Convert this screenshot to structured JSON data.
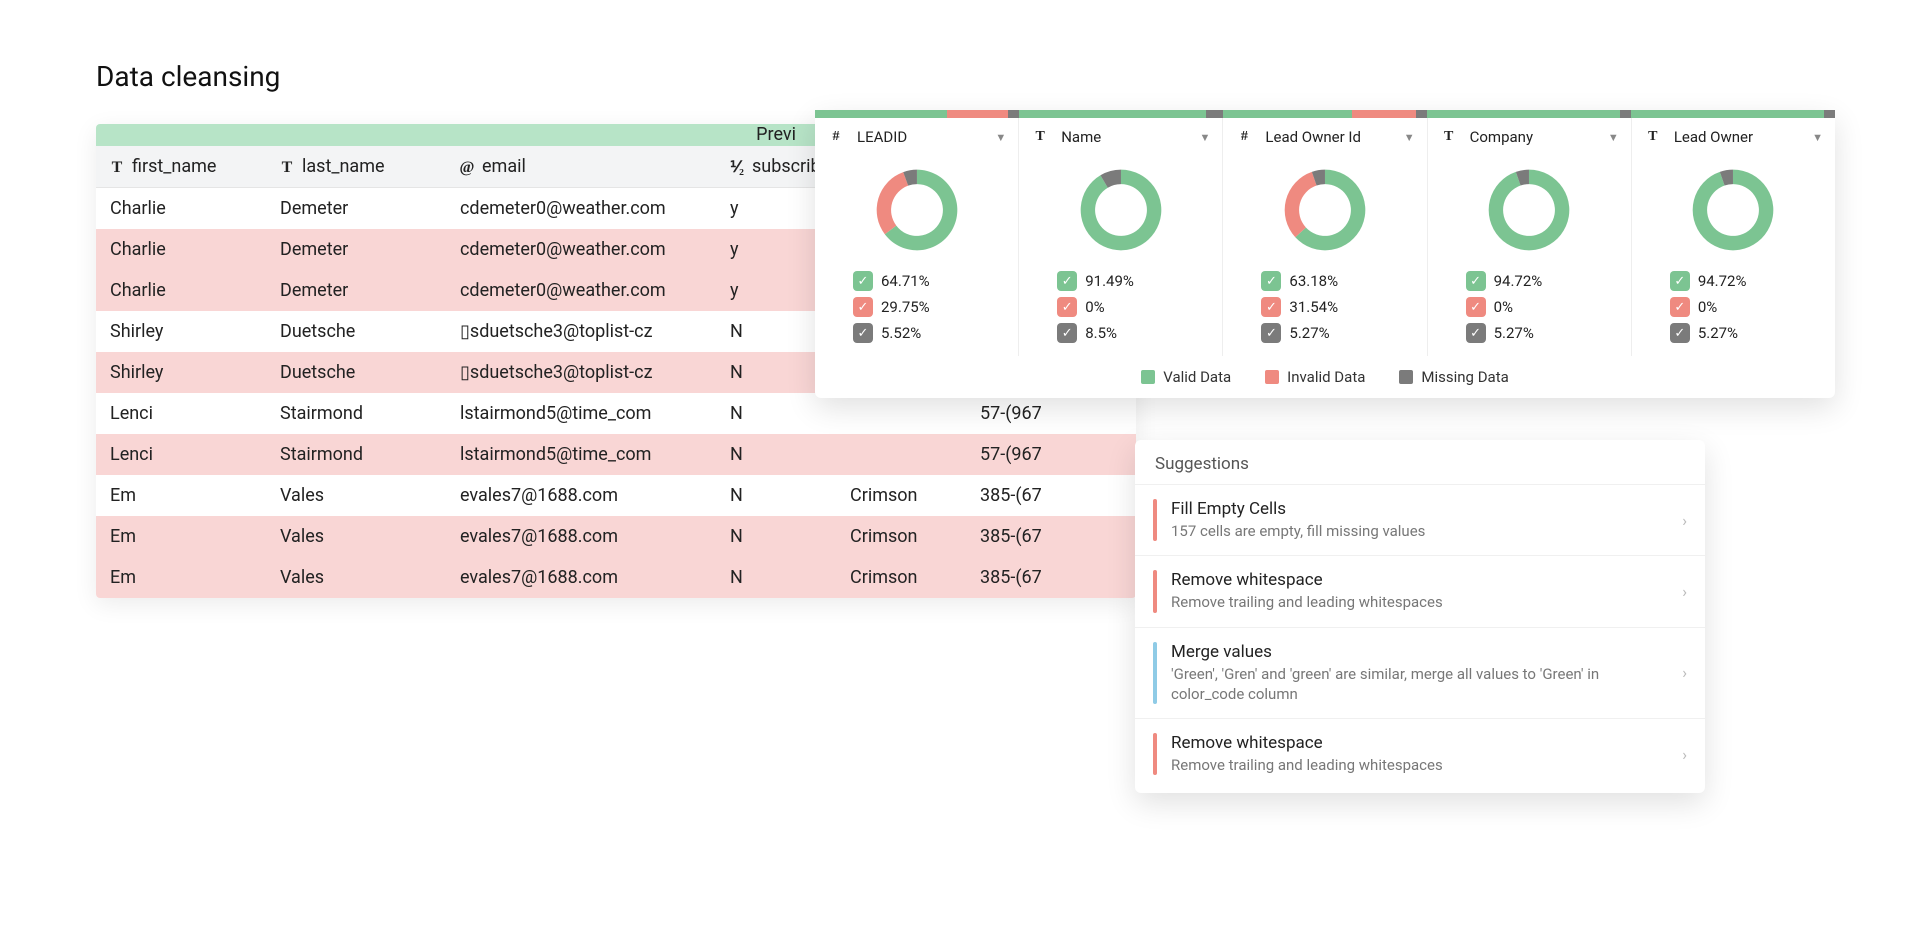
{
  "page": {
    "title": "Data cleansing"
  },
  "colors": {
    "valid": "#7cc492",
    "invalid": "#ef8a80",
    "missing": "#7b7b7b",
    "preview_strip": "#b7e4c7",
    "dup_row_bg": "#f9d6d5",
    "sugg_red": "#ef8a80",
    "sugg_blue": "#8fcbe6"
  },
  "table": {
    "preview_label": "Previ",
    "columns": [
      {
        "type_icon": "T",
        "label": "first_name"
      },
      {
        "type_icon": "T",
        "label": "last_name"
      },
      {
        "type_icon": "@",
        "label": "email"
      },
      {
        "type_icon": "⅟₂",
        "label": "subscrib"
      },
      {
        "type_icon": "",
        "label": ""
      },
      {
        "type_icon": "",
        "label": ""
      }
    ],
    "rows": [
      {
        "dup": false,
        "cells": [
          "Charlie",
          "Demeter",
          "cdemeter0@weather.com",
          "y",
          "",
          ""
        ]
      },
      {
        "dup": true,
        "cells": [
          "Charlie",
          "Demeter",
          "cdemeter0@weather.com",
          "y",
          "",
          ""
        ]
      },
      {
        "dup": true,
        "cells": [
          "Charlie",
          "Demeter",
          "cdemeter0@weather.com",
          "y",
          "",
          ""
        ]
      },
      {
        "dup": false,
        "cells": [
          "Shirley",
          "Duetsche",
          "▯sduetsche3@toplist-cz",
          "N",
          "",
          ""
        ]
      },
      {
        "dup": true,
        "cells": [
          "Shirley",
          "Duetsche",
          "▯sduetsche3@toplist-cz",
          "N",
          "",
          ""
        ]
      },
      {
        "dup": false,
        "cells": [
          "Lenci",
          "Stairmond",
          "lstairmond5@time_com",
          "N",
          "",
          "57-(967"
        ]
      },
      {
        "dup": true,
        "cells": [
          "Lenci",
          "Stairmond",
          "lstairmond5@time_com",
          "N",
          "",
          "57-(967"
        ]
      },
      {
        "dup": false,
        "cells": [
          "Em",
          "Vales",
          "evales7@1688.com",
          "N",
          "Crimson",
          "385-(67"
        ]
      },
      {
        "dup": true,
        "cells": [
          "Em",
          "Vales",
          "evales7@1688.com",
          "N",
          "Crimson",
          "385-(67"
        ]
      },
      {
        "dup": true,
        "cells": [
          "Em",
          "Vales",
          "evales7@1688.com",
          "N",
          "Crimson",
          "385-(67"
        ]
      }
    ]
  },
  "quality": {
    "legend": {
      "valid": "Valid Data",
      "invalid": "Invalid Data",
      "missing": "Missing Data"
    },
    "donut": {
      "outer_r": 42,
      "inner_r": 27
    },
    "columns": [
      {
        "type_icon": "#",
        "label": "LEADID",
        "valid": 64.71,
        "invalid": 29.75,
        "missing": 5.52
      },
      {
        "type_icon": "T",
        "label": "Name",
        "valid": 91.49,
        "invalid": 0,
        "missing": 8.5
      },
      {
        "type_icon": "#",
        "label": "Lead Owner Id",
        "valid": 63.18,
        "invalid": 31.54,
        "missing": 5.27
      },
      {
        "type_icon": "T",
        "label": "Company",
        "valid": 94.72,
        "invalid": 0,
        "missing": 5.27
      },
      {
        "type_icon": "T",
        "label": "Lead Owner",
        "valid": 94.72,
        "invalid": 0,
        "missing": 5.27
      }
    ]
  },
  "suggestions": {
    "title": "Suggestions",
    "items": [
      {
        "bar_color": "#ef8a80",
        "title": "Fill Empty Cells",
        "desc": "157 cells are empty, fill missing values"
      },
      {
        "bar_color": "#ef8a80",
        "title": "Remove whitespace",
        "desc": "Remove trailing and leading whitespaces"
      },
      {
        "bar_color": "#8fcbe6",
        "title": "Merge values",
        "desc": "'Green', 'Gren' and 'green' are similar, merge all values to 'Green' in color_code column"
      },
      {
        "bar_color": "#ef8a80",
        "title": "Remove whitespace",
        "desc": "Remove trailing and leading whitespaces"
      }
    ]
  }
}
